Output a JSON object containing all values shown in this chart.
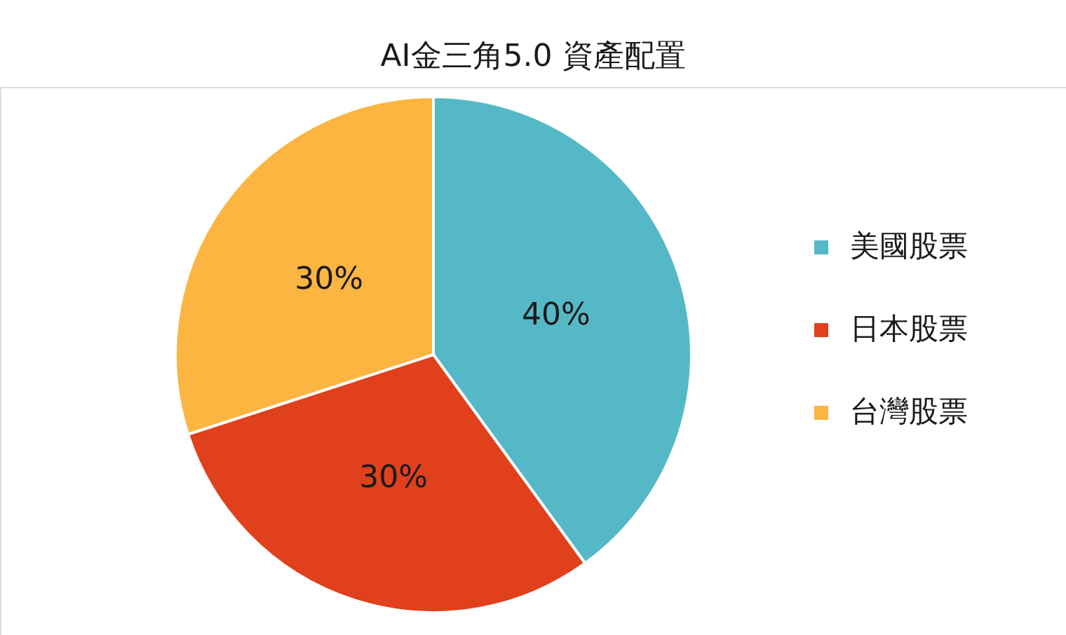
{
  "chart_data": {
    "type": "pie",
    "title": "AI金三角5.0 資產配置",
    "categories": [
      "美國股票",
      "日本股票",
      "台灣股票"
    ],
    "values": [
      40,
      30,
      30
    ],
    "colors": [
      "#55b8c7",
      "#e0401c",
      "#fbb540"
    ],
    "value_labels": [
      "40%",
      "30%",
      "30%"
    ],
    "legend": "right"
  }
}
